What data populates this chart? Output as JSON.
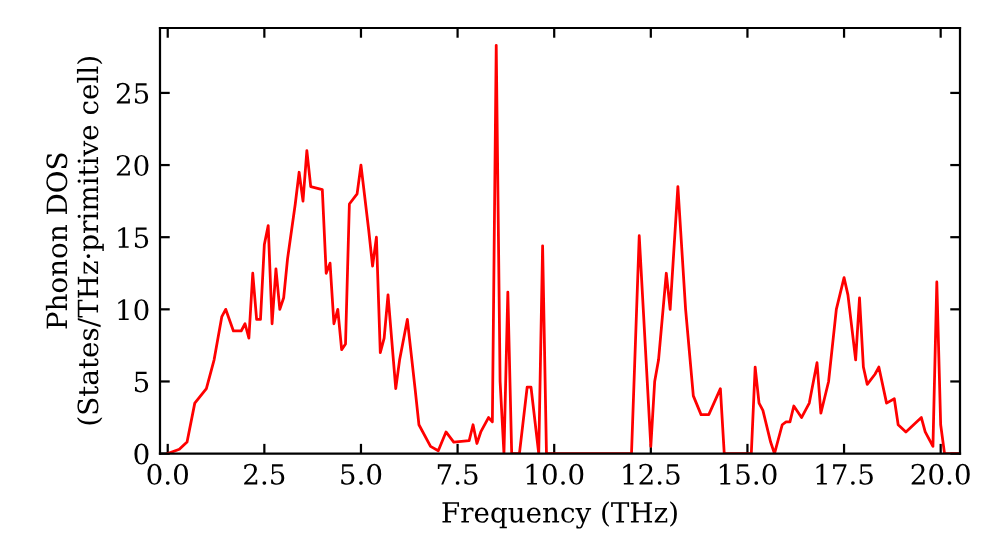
{
  "chart_data": {
    "type": "line",
    "xlabel": "Frequency (THz)",
    "ylabel": "Phonon DOS\n(States/THz·primitive cell)",
    "series": [
      {
        "color": "#ff0000",
        "x": [
          0.0,
          0.3,
          0.5,
          0.7,
          1.0,
          1.2,
          1.4,
          1.5,
          1.7,
          1.9,
          2.0,
          2.1,
          2.2,
          2.3,
          2.4,
          2.5,
          2.6,
          2.7,
          2.8,
          2.9,
          3.0,
          3.1,
          3.3,
          3.4,
          3.5,
          3.6,
          3.7,
          4.0,
          4.1,
          4.2,
          4.3,
          4.4,
          4.5,
          4.6,
          4.7,
          4.9,
          5.0,
          5.2,
          5.3,
          5.4,
          5.5,
          5.6,
          5.7,
          5.9,
          6.0,
          6.2,
          6.4,
          6.5,
          6.8,
          7.0,
          7.2,
          7.4,
          7.8,
          7.9,
          8.0,
          8.1,
          8.3,
          8.4,
          8.5,
          8.6,
          8.7,
          8.8,
          8.9,
          9.1,
          9.3,
          9.4,
          9.6,
          9.7,
          9.8,
          12.0,
          12.2,
          12.5,
          12.6,
          12.7,
          12.9,
          13.0,
          13.2,
          13.4,
          13.6,
          13.8,
          14.0,
          14.3,
          14.4,
          15.1,
          15.2,
          15.3,
          15.4,
          15.6,
          15.7,
          15.9,
          16.0,
          16.1,
          16.2,
          16.4,
          16.6,
          16.8,
          16.9,
          17.1,
          17.3,
          17.5,
          17.6,
          17.8,
          17.9,
          18.0,
          18.1,
          18.3,
          18.4,
          18.6,
          18.8,
          18.9,
          19.1,
          19.3,
          19.5,
          19.6,
          19.8,
          19.9,
          20.0,
          20.1,
          20.5
        ],
        "values": [
          0,
          0.3,
          0.8,
          3.5,
          4.5,
          6.5,
          9.5,
          10,
          8.5,
          8.5,
          9,
          8,
          12.5,
          9.3,
          9.3,
          14.5,
          15.8,
          9,
          12.8,
          10,
          10.8,
          13.5,
          17.3,
          19.5,
          17.5,
          21,
          18.5,
          18.3,
          12.5,
          13.2,
          9,
          10,
          7.2,
          7.6,
          17.3,
          18,
          20,
          15.5,
          13,
          15,
          7,
          8,
          11,
          4.5,
          6.5,
          9.3,
          4.5,
          2,
          0.5,
          0.2,
          1.5,
          0.8,
          0.9,
          2.0,
          0.7,
          1.5,
          2.5,
          2.2,
          28.3,
          5,
          0,
          11.2,
          0,
          0,
          4.6,
          4.6,
          0,
          14.4,
          0,
          0,
          15.1,
          0.5,
          5,
          6.5,
          12.5,
          10,
          18.5,
          10,
          4,
          2.7,
          2.7,
          4.5,
          0,
          0,
          6,
          3.5,
          3,
          0.8,
          0,
          2,
          2.2,
          2.2,
          3.3,
          2.5,
          3.5,
          6.3,
          2.8,
          5,
          10,
          12.2,
          11,
          6.5,
          10.8,
          6,
          4.8,
          5.5,
          6,
          3.5,
          3.8,
          2,
          1.5,
          2,
          2.5,
          1.5,
          0.5,
          11.9,
          2,
          0,
          0
        ]
      }
    ],
    "xlim": [
      -0.2,
      20.5
    ],
    "ylim": [
      0,
      29.5
    ],
    "xticks": [
      {
        "value": 0,
        "label": "0.0"
      },
      {
        "value": 2.5,
        "label": "2.5"
      },
      {
        "value": 5,
        "label": "5.0"
      },
      {
        "value": 7.5,
        "label": "7.5"
      },
      {
        "value": 10,
        "label": "10.0"
      },
      {
        "value": 12.5,
        "label": "12.5"
      },
      {
        "value": 15,
        "label": "15.0"
      },
      {
        "value": 17.5,
        "label": "17.5"
      },
      {
        "value": 20,
        "label": "20.0"
      }
    ],
    "yticks": [
      0,
      5,
      10,
      15,
      20,
      25
    ]
  }
}
